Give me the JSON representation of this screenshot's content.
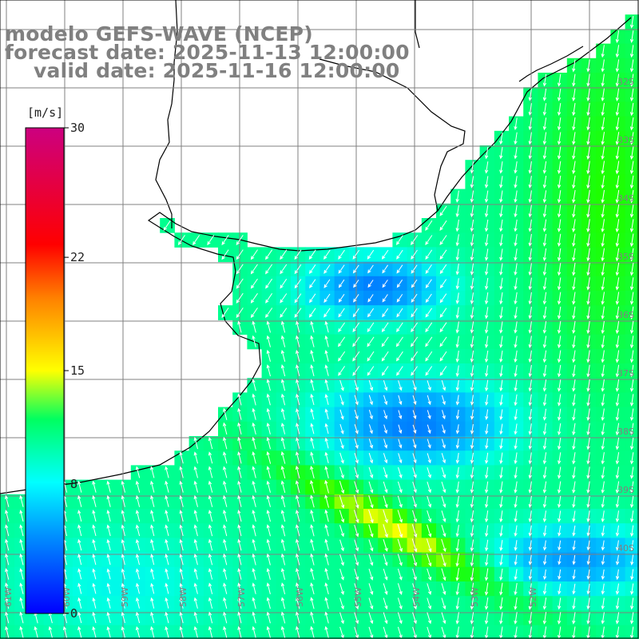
{
  "title": {
    "line1": "modelo GEFS-WAVE (NCEP)",
    "line2": "forecast date: 2025-11-13 12:00:00",
    "line3": "valid date: 2025-11-16 12:00:00"
  },
  "colorbar": {
    "unit": "[m/s]",
    "ticks": [
      "30",
      "22",
      "15",
      "8",
      "0"
    ],
    "tick_values": [
      30,
      22,
      15,
      8,
      0
    ],
    "range": [
      0,
      30
    ],
    "colors": [
      "#0000ff",
      "#0090ff",
      "#00ffff",
      "#00ff30",
      "#ffff00",
      "#ff8000",
      "#ff0000",
      "#cc0080"
    ]
  },
  "map": {
    "grid_lines": true,
    "land_color": "#ffffff",
    "coastline_color": "#000000",
    "grid_color": "#808080",
    "vector_color": "#ffffff",
    "lat_labels": [
      "32S",
      "33S",
      "34S",
      "35S",
      "36S",
      "37S",
      "38S",
      "39S",
      "40S"
    ],
    "lon_labels": [
      "61W",
      "60W",
      "59W",
      "58W",
      "57W",
      "56W",
      "55W",
      "54W",
      "53W",
      "52W"
    ]
  }
}
